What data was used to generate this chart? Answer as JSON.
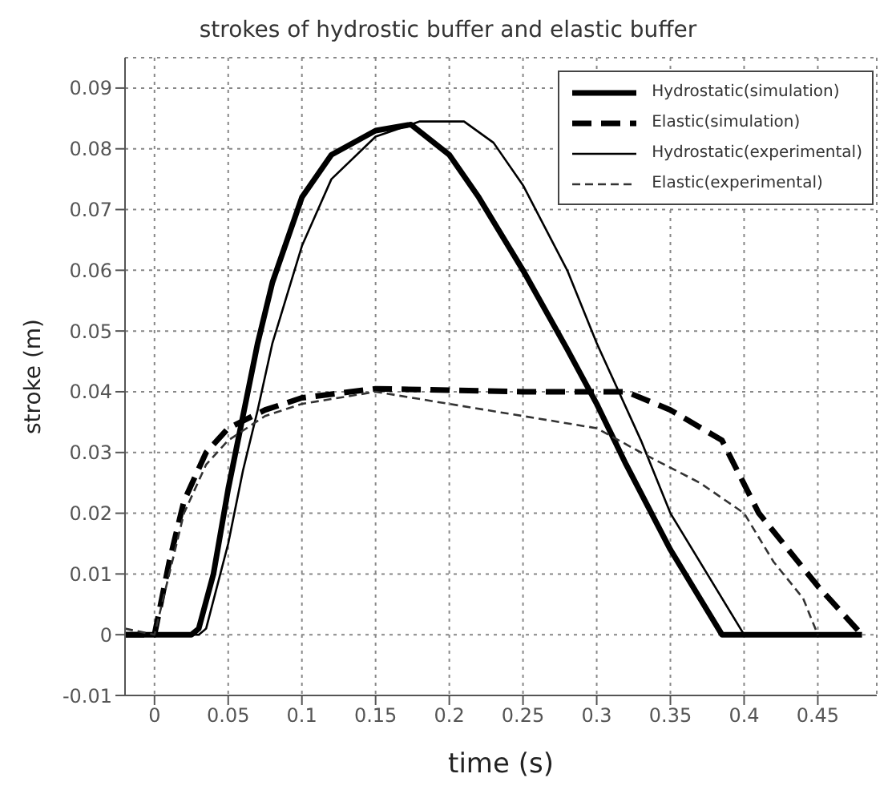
{
  "chart_data": {
    "type": "line",
    "title": "strokes of hydrostic buffer and elastic buffer",
    "xlabel": "time (s)",
    "ylabel": "stroke (m)",
    "xlim": [
      -0.02,
      0.49
    ],
    "xticks": [
      0,
      0.05,
      0.1,
      0.15,
      0.2,
      0.25,
      0.3,
      0.35,
      0.4,
      0.45
    ],
    "ylim": [
      -0.01,
      0.095
    ],
    "yticks": [
      -0.01,
      0,
      0.01,
      0.02,
      0.03,
      0.04,
      0.05,
      0.06,
      0.07,
      0.08,
      0.09
    ],
    "grid": true,
    "legend": "top right",
    "marker": "none",
    "series": [
      {
        "name": "Hydrostatic(simulation)",
        "color": "#000000",
        "line_style": "solid",
        "x": [
          -0.02,
          0.025,
          0.03,
          0.04,
          0.05,
          0.06,
          0.07,
          0.08,
          0.1,
          0.12,
          0.15,
          0.174,
          0.2,
          0.22,
          0.25,
          0.28,
          0.3,
          0.32,
          0.35,
          0.385,
          0.48
        ],
        "values": [
          0,
          0,
          0.001,
          0.01,
          0.024,
          0.036,
          0.048,
          0.058,
          0.072,
          0.079,
          0.083,
          0.084,
          0.079,
          0.072,
          0.06,
          0.047,
          0.038,
          0.028,
          0.014,
          0,
          0
        ]
      },
      {
        "name": "Elastic(simulation)",
        "color": "#000000",
        "line_style": "dashed",
        "x": [
          -0.02,
          0,
          0.01,
          0.02,
          0.035,
          0.05,
          0.075,
          0.1,
          0.15,
          0.25,
          0.32,
          0.35,
          0.385,
          0.41,
          0.45,
          0.48
        ],
        "values": [
          0,
          0,
          0.012,
          0.022,
          0.03,
          0.034,
          0.037,
          0.039,
          0.0405,
          0.04,
          0.04,
          0.037,
          0.032,
          0.02,
          0.008,
          0
        ]
      },
      {
        "name": "Hydrostatic(experimental)",
        "color": "#000000",
        "line_style": "solid",
        "x": [
          -0.02,
          0.03,
          0.035,
          0.05,
          0.06,
          0.07,
          0.08,
          0.1,
          0.12,
          0.15,
          0.18,
          0.21,
          0.23,
          0.25,
          0.28,
          0.3,
          0.33,
          0.35,
          0.4
        ],
        "values": [
          0,
          0,
          0.001,
          0.015,
          0.027,
          0.037,
          0.048,
          0.064,
          0.075,
          0.082,
          0.0845,
          0.0845,
          0.081,
          0.074,
          0.06,
          0.048,
          0.032,
          0.02,
          0
        ]
      },
      {
        "name": "Elastic(experimental)",
        "color": "#333333",
        "line_style": "dashed",
        "x": [
          -0.02,
          0,
          0.01,
          0.02,
          0.035,
          0.05,
          0.075,
          0.1,
          0.15,
          0.2,
          0.25,
          0.3,
          0.33,
          0.37,
          0.4,
          0.42,
          0.44,
          0.45
        ],
        "values": [
          0.001,
          0,
          0.01,
          0.02,
          0.028,
          0.032,
          0.036,
          0.038,
          0.04,
          0.038,
          0.036,
          0.034,
          0.03,
          0.025,
          0.02,
          0.012,
          0.006,
          0
        ]
      }
    ]
  }
}
